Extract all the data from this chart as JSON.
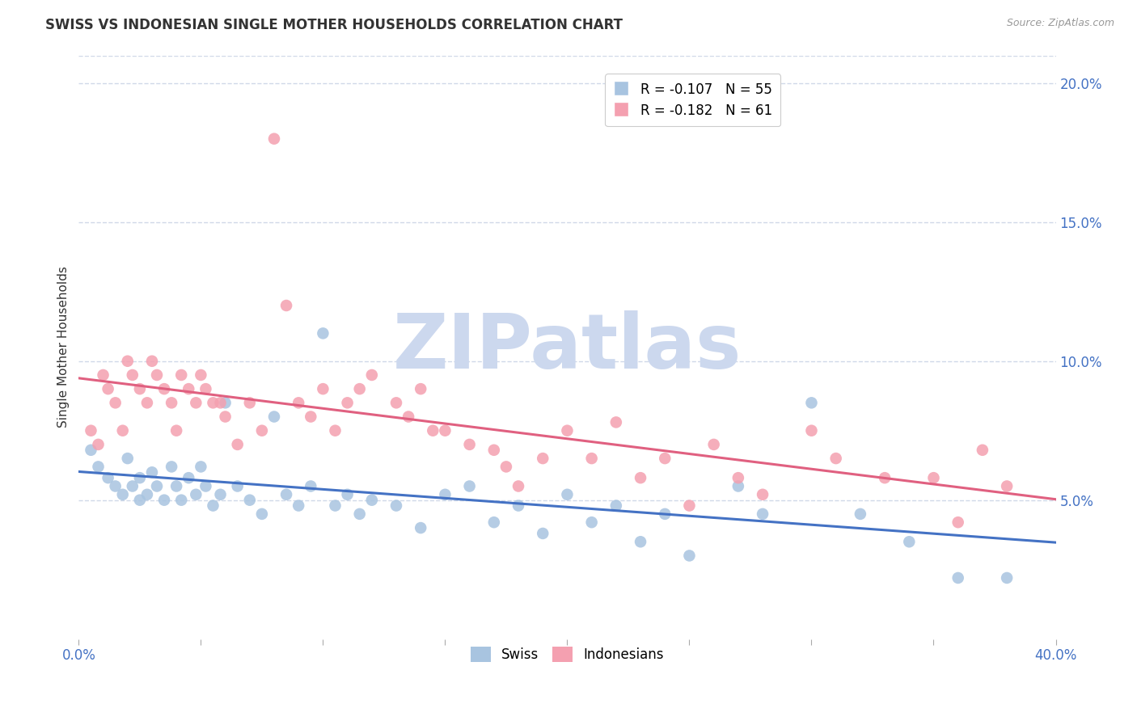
{
  "title": "SWISS VS INDONESIAN SINGLE MOTHER HOUSEHOLDS CORRELATION CHART",
  "source": "Source: ZipAtlas.com",
  "ylabel": "Single Mother Households",
  "right_yticklabels": [
    "",
    "5.0%",
    "10.0%",
    "15.0%",
    "20.0%"
  ],
  "right_yticks": [
    0.0,
    0.05,
    0.1,
    0.15,
    0.2
  ],
  "xlim": [
    0.0,
    0.4
  ],
  "ylim": [
    0.0,
    0.21
  ],
  "legend_swiss": "R = -0.107   N = 55",
  "legend_indo": "R = -0.182   N = 61",
  "swiss_color": "#a8c4e0",
  "indo_color": "#f4a0b0",
  "swiss_line_color": "#4472c4",
  "indo_line_color": "#e06080",
  "grid_color": "#d0d8e8",
  "watermark": "ZIPatlas",
  "watermark_color": "#ccd8ee",
  "swiss_x": [
    0.005,
    0.008,
    0.012,
    0.015,
    0.018,
    0.02,
    0.022,
    0.025,
    0.025,
    0.028,
    0.03,
    0.032,
    0.035,
    0.038,
    0.04,
    0.042,
    0.045,
    0.048,
    0.05,
    0.052,
    0.055,
    0.058,
    0.06,
    0.065,
    0.07,
    0.075,
    0.08,
    0.085,
    0.09,
    0.095,
    0.1,
    0.105,
    0.11,
    0.115,
    0.12,
    0.13,
    0.14,
    0.15,
    0.16,
    0.17,
    0.18,
    0.19,
    0.2,
    0.21,
    0.22,
    0.23,
    0.24,
    0.25,
    0.27,
    0.28,
    0.3,
    0.32,
    0.34,
    0.36,
    0.38
  ],
  "swiss_y": [
    0.068,
    0.062,
    0.058,
    0.055,
    0.052,
    0.065,
    0.055,
    0.05,
    0.058,
    0.052,
    0.06,
    0.055,
    0.05,
    0.062,
    0.055,
    0.05,
    0.058,
    0.052,
    0.062,
    0.055,
    0.048,
    0.052,
    0.085,
    0.055,
    0.05,
    0.045,
    0.08,
    0.052,
    0.048,
    0.055,
    0.11,
    0.048,
    0.052,
    0.045,
    0.05,
    0.048,
    0.04,
    0.052,
    0.055,
    0.042,
    0.048,
    0.038,
    0.052,
    0.042,
    0.048,
    0.035,
    0.045,
    0.03,
    0.055,
    0.045,
    0.085,
    0.045,
    0.035,
    0.022,
    0.022
  ],
  "indo_x": [
    0.005,
    0.008,
    0.01,
    0.012,
    0.015,
    0.018,
    0.02,
    0.022,
    0.025,
    0.028,
    0.03,
    0.032,
    0.035,
    0.038,
    0.04,
    0.042,
    0.045,
    0.048,
    0.05,
    0.052,
    0.055,
    0.058,
    0.06,
    0.065,
    0.07,
    0.075,
    0.08,
    0.085,
    0.09,
    0.095,
    0.1,
    0.105,
    0.11,
    0.115,
    0.12,
    0.13,
    0.135,
    0.14,
    0.145,
    0.15,
    0.16,
    0.17,
    0.175,
    0.18,
    0.19,
    0.2,
    0.21,
    0.22,
    0.23,
    0.24,
    0.25,
    0.26,
    0.27,
    0.28,
    0.3,
    0.31,
    0.33,
    0.35,
    0.36,
    0.37,
    0.38
  ],
  "indo_y": [
    0.075,
    0.07,
    0.095,
    0.09,
    0.085,
    0.075,
    0.1,
    0.095,
    0.09,
    0.085,
    0.1,
    0.095,
    0.09,
    0.085,
    0.075,
    0.095,
    0.09,
    0.085,
    0.095,
    0.09,
    0.085,
    0.085,
    0.08,
    0.07,
    0.085,
    0.075,
    0.18,
    0.12,
    0.085,
    0.08,
    0.09,
    0.075,
    0.085,
    0.09,
    0.095,
    0.085,
    0.08,
    0.09,
    0.075,
    0.075,
    0.07,
    0.068,
    0.062,
    0.055,
    0.065,
    0.075,
    0.065,
    0.078,
    0.058,
    0.065,
    0.048,
    0.07,
    0.058,
    0.052,
    0.075,
    0.065,
    0.058,
    0.058,
    0.042,
    0.068,
    0.055
  ]
}
